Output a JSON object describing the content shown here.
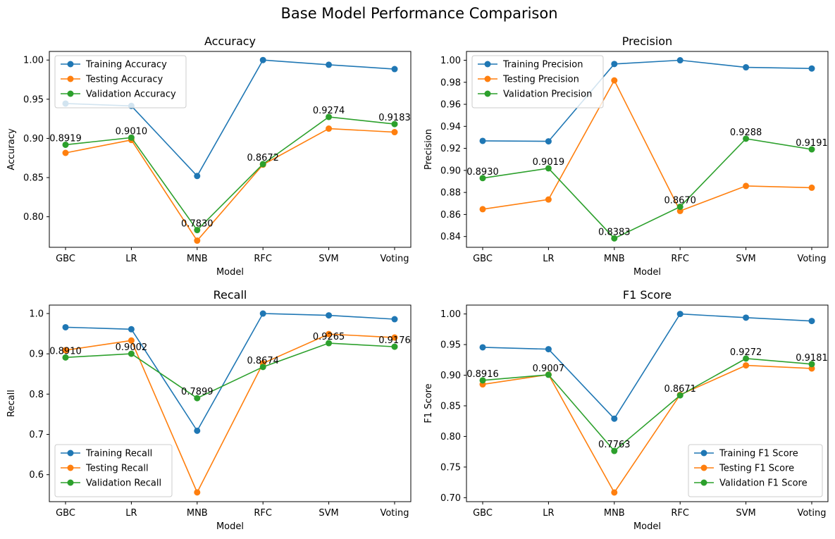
{
  "suptitle": "Base Model Performance Comparison",
  "chart_data": [
    {
      "type": "line",
      "title": "Accuracy",
      "xlabel": "Model",
      "ylabel": "Accuracy",
      "categories": [
        "GBC",
        "LR",
        "MNB",
        "RFC",
        "SVM",
        "Voting"
      ],
      "ylim": [
        0.761,
        1.011
      ],
      "yticks": [
        0.8,
        0.85,
        0.9,
        0.95,
        1.0
      ],
      "ytick_labels": [
        "0.80",
        "0.85",
        "0.90",
        "0.95",
        "1.00"
      ],
      "legend_position": "upper-left",
      "grid": false,
      "series": [
        {
          "name": "Training Accuracy",
          "color": "#1f77b4",
          "values": [
            0.9445,
            0.9415,
            0.852,
            1.0,
            0.994,
            0.9885
          ]
        },
        {
          "name": "Testing Accuracy",
          "color": "#ff7f0e",
          "values": [
            0.8815,
            0.898,
            0.7695,
            0.8665,
            0.9125,
            0.908
          ]
        },
        {
          "name": "Validation Accuracy",
          "color": "#2ca02c",
          "values": [
            0.8919,
            0.901,
            0.783,
            0.8672,
            0.9274,
            0.9183
          ]
        }
      ],
      "data_labels": [
        "0.8919",
        "0.9010",
        "0.7830",
        "0.8672",
        "0.9274",
        "0.9183"
      ]
    },
    {
      "type": "line",
      "title": "Precision",
      "xlabel": "Model",
      "ylabel": "Precision",
      "categories": [
        "GBC",
        "LR",
        "MNB",
        "RFC",
        "SVM",
        "Voting"
      ],
      "ylim": [
        0.8302,
        1.008
      ],
      "yticks": [
        0.84,
        0.86,
        0.88,
        0.9,
        0.92,
        0.94,
        0.96,
        0.98,
        1.0
      ],
      "ytick_labels": [
        "0.84",
        "0.86",
        "0.88",
        "0.90",
        "0.92",
        "0.94",
        "0.96",
        "0.98",
        "1.00"
      ],
      "legend_position": "upper-left",
      "grid": false,
      "series": [
        {
          "name": "Training Precision",
          "color": "#1f77b4",
          "values": [
            0.9268,
            0.9264,
            0.9966,
            1.0,
            0.9936,
            0.9925
          ]
        },
        {
          "name": "Testing Precision",
          "color": "#ff7f0e",
          "values": [
            0.8648,
            0.8736,
            0.9817,
            0.8632,
            0.8859,
            0.8843
          ]
        },
        {
          "name": "Validation Precision",
          "color": "#2ca02c",
          "values": [
            0.893,
            0.9019,
            0.8383,
            0.867,
            0.9288,
            0.9191
          ]
        }
      ],
      "data_labels": [
        "0.8930",
        "0.9019",
        "0.8383",
        "0.8670",
        "0.9288",
        "0.9191"
      ]
    },
    {
      "type": "line",
      "title": "Recall",
      "xlabel": "Model",
      "ylabel": "Recall",
      "categories": [
        "GBC",
        "LR",
        "MNB",
        "RFC",
        "SVM",
        "Voting"
      ],
      "ylim": [
        0.533,
        1.021
      ],
      "yticks": [
        0.6,
        0.7,
        0.8,
        0.9,
        1.0
      ],
      "ytick_labels": [
        "0.6",
        "0.7",
        "0.8",
        "0.9",
        "1.0"
      ],
      "legend_position": "lower-left",
      "grid": false,
      "series": [
        {
          "name": "Training Recall",
          "color": "#1f77b4",
          "values": [
            0.966,
            0.961,
            0.709,
            1.0,
            0.9955,
            0.986
          ]
        },
        {
          "name": "Testing Recall",
          "color": "#ff7f0e",
          "values": [
            0.909,
            0.933,
            0.556,
            0.8765,
            0.949,
            0.9405
          ]
        },
        {
          "name": "Validation Recall",
          "color": "#2ca02c",
          "values": [
            0.891,
            0.9002,
            0.7899,
            0.8674,
            0.9265,
            0.9176
          ]
        }
      ],
      "data_labels": [
        "0.8910",
        "0.9002",
        "0.7899",
        "0.8674",
        "0.9265",
        "0.9176"
      ]
    },
    {
      "type": "line",
      "title": "F1 Score",
      "xlabel": "Model",
      "ylabel": "F1 Score",
      "categories": [
        "GBC",
        "LR",
        "MNB",
        "RFC",
        "SVM",
        "Voting"
      ],
      "ylim": [
        0.6935,
        1.0145
      ],
      "yticks": [
        0.7,
        0.75,
        0.8,
        0.85,
        0.9,
        0.95,
        1.0
      ],
      "ytick_labels": [
        "0.70",
        "0.75",
        "0.80",
        "0.85",
        "0.90",
        "0.95",
        "1.00"
      ],
      "legend_position": "lower-right",
      "grid": false,
      "series": [
        {
          "name": "Training F1 Score",
          "color": "#1f77b4",
          "values": [
            0.9455,
            0.9425,
            0.829,
            1.0,
            0.994,
            0.9885
          ]
        },
        {
          "name": "Testing F1 Score",
          "color": "#ff7f0e",
          "values": [
            0.885,
            0.901,
            0.7085,
            0.868,
            0.916,
            0.911
          ]
        },
        {
          "name": "Validation F1 Score",
          "color": "#2ca02c",
          "values": [
            0.8916,
            0.9007,
            0.7763,
            0.8671,
            0.9272,
            0.9181
          ]
        }
      ],
      "data_labels": [
        "0.8916",
        "0.9007",
        "0.7763",
        "0.8671",
        "0.9272",
        "0.9181"
      ]
    }
  ]
}
